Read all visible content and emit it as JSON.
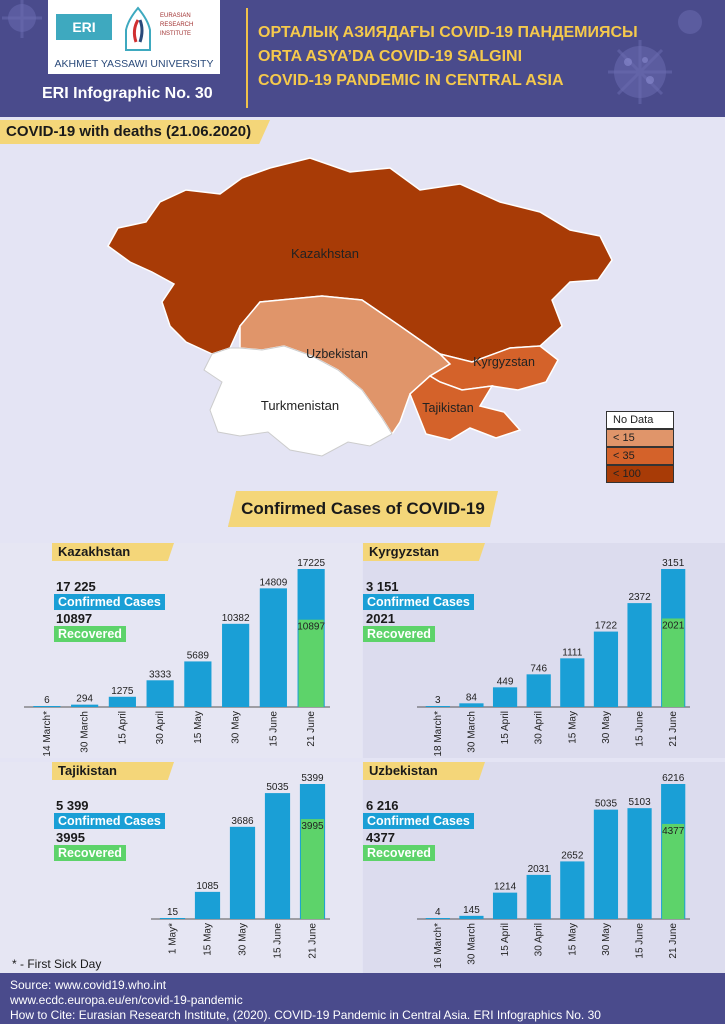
{
  "header": {
    "logo_short": "ERI",
    "logo_institute": "EURASIAN RESEARCH INSTITUTE",
    "logo_university": "AKHMET YASSAWI UNIVERSITY",
    "infographic_no": "ERI Infographic No. 30",
    "title_lines": [
      "ОРТАЛЫҚ АЗИЯДАҒЫ COVID-19 ПАНДЕМИЯСЫ",
      "ORTA ASYA’DA COVID-19 SALGINI",
      "COVID-19 PANDEMIC IN CENTRAL ASIA"
    ],
    "title_color": "#f5c94c",
    "header_bg": "#4a4b8c"
  },
  "map": {
    "banner": "COVID-19 with deaths (21.06.2020)",
    "labels": {
      "kz": "Kazakhstan",
      "uz": "Uzbekistan",
      "kg": "Kyrgyzstan",
      "tj": "Tajikistan",
      "tm": "Turkmenistan"
    },
    "legend": [
      {
        "label": "No Data",
        "color": "#ffffff"
      },
      {
        "label": "< 15",
        "color": "#e0956a"
      },
      {
        "label": "< 35",
        "color": "#d4622a"
      },
      {
        "label": "< 100",
        "color": "#a83b06"
      }
    ]
  },
  "section_title": "Confirmed Cases of COVID-19",
  "colors": {
    "confirmed": "#1a9fd6",
    "recovered": "#5dd36a"
  },
  "chart_data": [
    {
      "type": "bar",
      "title": "Kazakhstan",
      "categories": [
        "14 March*",
        "30 March",
        "15 April",
        "30 April",
        "15 May",
        "30 May",
        "15 June",
        "21 June"
      ],
      "series": [
        {
          "name": "Confirmed Cases",
          "values": [
            6,
            294,
            1275,
            3333,
            5689,
            10382,
            14809,
            17225
          ]
        },
        {
          "name": "Recovered",
          "values": [
            null,
            null,
            null,
            null,
            null,
            null,
            null,
            10897
          ]
        }
      ],
      "summary": {
        "confirmed": "17 225",
        "confirmed_label": "Confirmed Cases",
        "recovered": "10897",
        "recovered_label": "Recovered"
      },
      "ylim": [
        0,
        17225
      ]
    },
    {
      "type": "bar",
      "title": "Kyrgyzstan",
      "categories": [
        "18 March*",
        "30 March",
        "15 April",
        "30 April",
        "15 May",
        "30 May",
        "15 June",
        "21 June"
      ],
      "series": [
        {
          "name": "Confirmed Cases",
          "values": [
            3,
            84,
            449,
            746,
            1111,
            1722,
            2372,
            3151
          ]
        },
        {
          "name": "Recovered",
          "values": [
            null,
            null,
            null,
            null,
            null,
            null,
            null,
            2021
          ]
        }
      ],
      "summary": {
        "confirmed": "3 151",
        "confirmed_label": "Confirmed Cases",
        "recovered": "2021",
        "recovered_label": "Recovered"
      },
      "ylim": [
        0,
        3151
      ]
    },
    {
      "type": "bar",
      "title": "Tajikistan",
      "categories": [
        "1 May*",
        "15 May",
        "30 May",
        "15 June",
        "21 June"
      ],
      "series": [
        {
          "name": "Confirmed Cases",
          "values": [
            15,
            1085,
            3686,
            5035,
            5399
          ]
        },
        {
          "name": "Recovered",
          "values": [
            null,
            null,
            null,
            null,
            3995
          ]
        }
      ],
      "summary": {
        "confirmed": "5 399",
        "confirmed_label": "Confirmed Cases",
        "recovered": "3995",
        "recovered_label": "Recovered"
      },
      "ylim": [
        0,
        5399
      ]
    },
    {
      "type": "bar",
      "title": "Uzbekistan",
      "categories": [
        "16 March*",
        "30 March",
        "15 April",
        "30 April",
        "15 May",
        "30 May",
        "15 June",
        "21 June"
      ],
      "series": [
        {
          "name": "Confirmed Cases",
          "values": [
            4,
            145,
            1214,
            2031,
            2652,
            5035,
            5103,
            6216
          ]
        },
        {
          "name": "Recovered",
          "values": [
            null,
            null,
            null,
            null,
            null,
            null,
            null,
            4377
          ]
        }
      ],
      "summary": {
        "confirmed": "6 216",
        "confirmed_label": "Confirmed Cases",
        "recovered": "4377",
        "recovered_label": "Recovered"
      },
      "ylim": [
        0,
        6216
      ]
    }
  ],
  "first_sick_note": "* - First Sick Day",
  "footer": {
    "source": "Source: www.covid19.who.int",
    "source2": "www.ecdc.europa.eu/en/covid-19-pandemic",
    "cite": "How to Cite: Eurasian Research Institute, (2020). COVID-19 Pandemic in Central Asia. ERI Infographics No. 30"
  }
}
